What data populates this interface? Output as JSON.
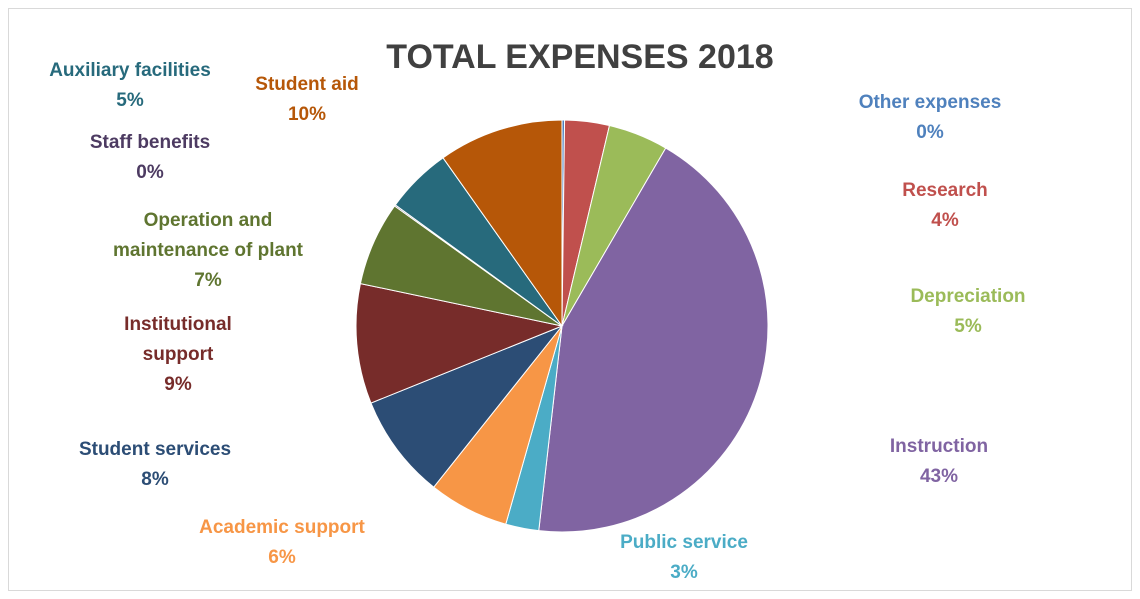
{
  "chart_data": {
    "type": "pie",
    "title": "TOTAL EXPENSES 2018",
    "slices": [
      {
        "name": "Other expenses",
        "percent_label": "0%",
        "value": 0.2,
        "color": "#4f81bd"
      },
      {
        "name": "Research",
        "percent_label": "4%",
        "value": 3.5,
        "color": "#c0504d"
      },
      {
        "name": "Depreciation",
        "percent_label": "5%",
        "value": 4.7,
        "color": "#9bbb59"
      },
      {
        "name": "Instruction",
        "percent_label": "43%",
        "value": 43.4,
        "color": "#8064a2"
      },
      {
        "name": "Public service",
        "percent_label": "3%",
        "value": 2.6,
        "color": "#4bacc6"
      },
      {
        "name": "Academic support",
        "percent_label": "6%",
        "value": 6.3,
        "color": "#f79646"
      },
      {
        "name": "Student services",
        "percent_label": "8%",
        "value": 8.2,
        "color": "#2c4d75"
      },
      {
        "name": "Institutional support",
        "percent_label": "9%",
        "value": 9.4,
        "color": "#772c2a"
      },
      {
        "name": "Operation and maintenance of plant",
        "percent_label": "7%",
        "value": 6.6,
        "color": "#5f7530"
      },
      {
        "name": "Staff benefits",
        "percent_label": "0%",
        "value": 0.1,
        "color": "#4d3b62"
      },
      {
        "name": "Auxiliary facilities",
        "percent_label": "5%",
        "value": 5.2,
        "color": "#276a7c"
      },
      {
        "name": "Student aid",
        "percent_label": "10%",
        "value": 9.8,
        "color": "#b65708"
      }
    ],
    "legend": "none"
  }
}
